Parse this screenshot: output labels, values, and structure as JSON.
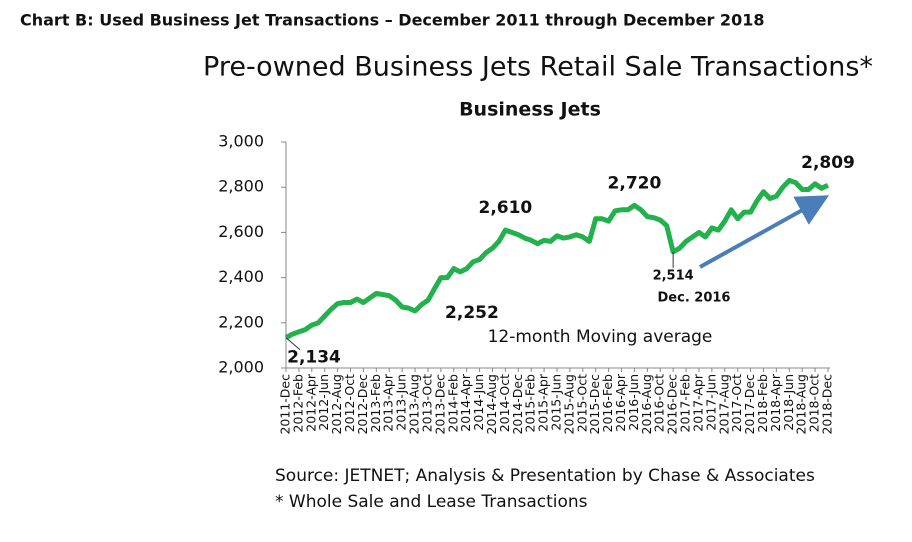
{
  "header": "Chart B: Used Business Jet Transactions – December 2011 through December 2018",
  "chart_data": {
    "type": "line",
    "title": "Pre-owned Business Jets Retail Sale Transactions*",
    "subtitle": "Business Jets",
    "annotations": [
      "12-month Moving average",
      "Dec. 2016"
    ],
    "source": "Source: JETNET; Analysis & Presentation by Chase & Associates",
    "footnote": "* Whole Sale and Lease Transactions",
    "categories": [
      "2011-Dec",
      null,
      "2012-Feb",
      null,
      "2012-Apr",
      null,
      "2012-Jun",
      null,
      "2012-Aug",
      null,
      "2012-Oct",
      null,
      "2012-Dec",
      null,
      "2013-Feb",
      null,
      "2013-Apr",
      null,
      "2013-Jun",
      null,
      "2013-Aug",
      null,
      "2013-Oct",
      null,
      "2013-Dec",
      null,
      "2014-Feb",
      null,
      "2014-Apr",
      null,
      "2014-Jun",
      null,
      "2014-Aug",
      null,
      "2014-Oct",
      null,
      "2014-Dec",
      null,
      "2015-Feb",
      null,
      "2015-Apr",
      null,
      "2015-Jun",
      null,
      "2015-Aug",
      null,
      "2015-Oct",
      null,
      "2015-Dec",
      null,
      "2016-Feb",
      null,
      "2016-Apr",
      null,
      "2016-Jun",
      null,
      "2016-Aug",
      null,
      "2016-Oct",
      null,
      "2016-Dec",
      null,
      "2017-Feb",
      null,
      "2017-Apr",
      null,
      "2017-Jun",
      null,
      "2017-Aug",
      null,
      "2017-Oct",
      null,
      "2017-Dec",
      null,
      "2018-Feb",
      null,
      "2018-Apr",
      null,
      "2018-Jun",
      null,
      "2018-Aug",
      null,
      "2018-Oct",
      null,
      "2018-Dec"
    ],
    "values": [
      2134,
      2150,
      2160,
      2170,
      2190,
      2200,
      2230,
      2260,
      2285,
      2290,
      2290,
      2305,
      2290,
      2310,
      2330,
      2325,
      2320,
      2300,
      2270,
      2265,
      2252,
      2280,
      2300,
      2350,
      2400,
      2400,
      2440,
      2425,
      2440,
      2470,
      2480,
      2510,
      2530,
      2560,
      2610,
      2600,
      2590,
      2575,
      2565,
      2550,
      2565,
      2560,
      2585,
      2575,
      2580,
      2590,
      2580,
      2560,
      2660,
      2660,
      2650,
      2695,
      2700,
      2700,
      2720,
      2700,
      2670,
      2665,
      2655,
      2630,
      2514,
      2530,
      2560,
      2580,
      2600,
      2580,
      2620,
      2610,
      2650,
      2700,
      2660,
      2690,
      2690,
      2740,
      2780,
      2750,
      2760,
      2800,
      2830,
      2820,
      2790,
      2790,
      2815,
      2795,
      2809
    ],
    "value_labels": [
      "2,134",
      null,
      null,
      null,
      null,
      null,
      null,
      null,
      null,
      null,
      null,
      null,
      null,
      null,
      null,
      null,
      null,
      null,
      null,
      null,
      "2,252",
      null,
      null,
      null,
      null,
      null,
      null,
      null,
      null,
      null,
      null,
      null,
      null,
      null,
      "2,610",
      null,
      null,
      null,
      null,
      null,
      null,
      null,
      null,
      null,
      null,
      null,
      null,
      null,
      null,
      null,
      null,
      null,
      null,
      null,
      "2,720",
      null,
      null,
      null,
      null,
      null,
      "2,514",
      null,
      null,
      null,
      null,
      null,
      null,
      null,
      null,
      null,
      null,
      null,
      null,
      null,
      null,
      null,
      null,
      null,
      null,
      null,
      null,
      null,
      null,
      null,
      "2,809"
    ],
    "color": "#22b14c",
    "ylim": [
      2000,
      3000
    ],
    "yticks": [
      {
        "value": 2000,
        "label": "2,000"
      },
      {
        "value": 2200,
        "label": "2,200"
      },
      {
        "value": 2400,
        "label": "2,400"
      },
      {
        "value": 2600,
        "label": "2,600"
      },
      {
        "value": 2800,
        "label": "2,800"
      },
      {
        "value": 3000,
        "label": "3,000"
      }
    ]
  }
}
